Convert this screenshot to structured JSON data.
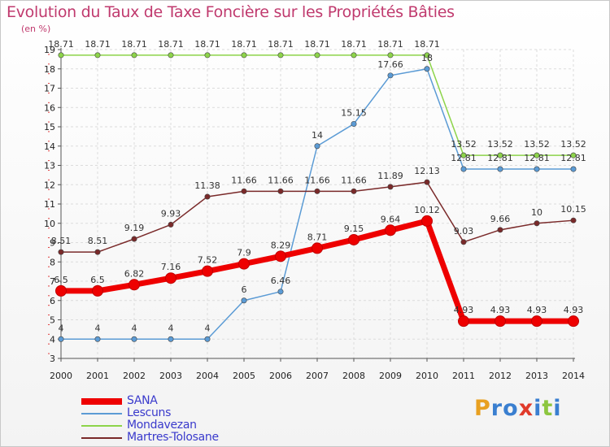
{
  "chart_data": {
    "type": "line",
    "title": "Evolution du Taux de Taxe Foncière sur les Propriétés Bâties",
    "subtitle": "(en %)",
    "x": [
      "2000",
      "2001",
      "2002",
      "2003",
      "2004",
      "2005",
      "2006",
      "2007",
      "2008",
      "2009",
      "2010",
      "2011",
      "2012",
      "2013",
      "2014"
    ],
    "ylim": [
      3,
      19
    ],
    "yticks": [
      3,
      4,
      5,
      6,
      7,
      8,
      9,
      10,
      11,
      12,
      13,
      14,
      15,
      16,
      17,
      18,
      19
    ],
    "grid": true,
    "legend_position": "bottom-left",
    "series": [
      {
        "name": "SANA",
        "color": "#ee0000",
        "labels": [
          "6.5",
          "6.5",
          "6.82",
          "7.16",
          "7.52",
          "7.9",
          "8.29",
          "8.71",
          "9.15",
          "9.64",
          "10.12",
          "4.93",
          "4.93",
          "4.93",
          "4.93"
        ],
        "values": [
          6.5,
          6.5,
          6.82,
          7.16,
          7.52,
          7.9,
          8.29,
          8.71,
          9.15,
          9.64,
          10.12,
          4.93,
          4.93,
          4.93,
          4.93
        ]
      },
      {
        "name": "Lescuns",
        "color": "#5b9bd5",
        "labels": [
          "4",
          "4",
          "4",
          "4",
          "4",
          "6",
          "6.46",
          "14",
          "15.15",
          "17.66",
          "18",
          "12.81",
          "12.81",
          "12.81",
          "12.81"
        ],
        "values": [
          4,
          4,
          4,
          4,
          4,
          6,
          6.46,
          14,
          15.15,
          17.66,
          18,
          12.81,
          12.81,
          12.81,
          12.81
        ]
      },
      {
        "name": "Mondavezan",
        "color": "#8dd44a",
        "labels": [
          "18.71",
          "18.71",
          "18.71",
          "18.71",
          "18.71",
          "18.71",
          "18.71",
          "18.71",
          "18.71",
          "18.71",
          "18.71",
          "13.52",
          "13.52",
          "13.52",
          "13.52"
        ],
        "values": [
          18.71,
          18.71,
          18.71,
          18.71,
          18.71,
          18.71,
          18.71,
          18.71,
          18.71,
          18.71,
          18.71,
          13.52,
          13.52,
          13.52,
          13.52
        ]
      },
      {
        "name": "Martres-Tolosane",
        "color": "#7a2a2a",
        "labels": [
          "8.51",
          "8.51",
          "9.19",
          "9.93",
          "11.38",
          "11.66",
          "11.66",
          "11.66",
          "11.66",
          "11.89",
          "12.13",
          "9.03",
          "9.66",
          "10",
          "10.15"
        ],
        "values": [
          8.51,
          8.51,
          9.19,
          9.93,
          11.38,
          11.66,
          11.66,
          11.66,
          11.66,
          11.89,
          12.13,
          9.03,
          9.66,
          10,
          10.15
        ]
      }
    ]
  },
  "logo": {
    "text": "Proxiti",
    "letters": [
      "P",
      "r",
      "o",
      "x",
      "i",
      "t",
      "i"
    ],
    "colors": [
      "#e8a020",
      "#3a7fd0",
      "#3a7fd0",
      "#e03a2a",
      "#3a7fd0",
      "#8dc63f",
      "#3a7fd0"
    ]
  }
}
